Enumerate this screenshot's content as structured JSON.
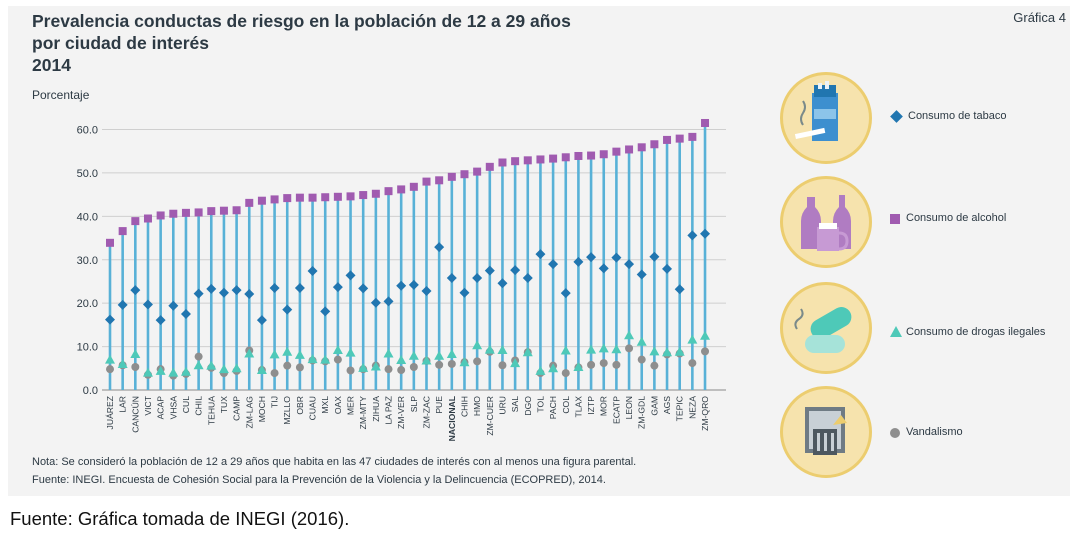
{
  "header": {
    "title_line1": "Prevalencia conductas de riesgo en la población de 12 a 29 años",
    "title_line2": "por ciudad de interés",
    "title_line3": "2014",
    "graph_number": "Gráfica 4"
  },
  "notes": {
    "note": "Nota: Se consideró la población de 12 a 29 años que habita en las 47 ciudades de interés con al menos una figura parental.",
    "source_inner": "Fuente: INEGI. Encuesta de Cohesión Social para la Prevención de la Violencia y la Delincuencia (ECOPRED), 2014."
  },
  "caption": "Fuente: Gráfica tomada de INEGI (2016).",
  "legend": [
    {
      "label": "Consumo de tabaco",
      "icon": "cigarette-pack-icon"
    },
    {
      "label": "Consumo de alcohol",
      "icon": "bottles-beer-icon"
    },
    {
      "label": "Consumo de drogas ilegales",
      "icon": "pills-icon"
    },
    {
      "label": "Vandalismo",
      "icon": "trash-can-icon"
    }
  ],
  "colors": {
    "tabaco": "#2176b0",
    "alcohol": "#a05bb0",
    "drogas": "#4ec9b8",
    "vandalismo": "#8e8e8e",
    "stem": "#58b1d7",
    "icon_bg": "#f6e3ad"
  },
  "chart_data": {
    "type": "scatter",
    "ylabel": "Porcentaje",
    "ylim": [
      0,
      60
    ],
    "yticks": [
      "0.0",
      "10.0",
      "20.0",
      "30.0",
      "40.0",
      "50.0",
      "60.0"
    ],
    "grid": true,
    "legend_position": "right",
    "categories": [
      "JUÁREZ",
      "LAR",
      "CANCÚN",
      "VICT",
      "ACAP",
      "VHSA",
      "CUL",
      "CHIL",
      "TEHUA",
      "TUX",
      "CAMP",
      "ZM-LAG",
      "MOCH",
      "TIJ",
      "MZLLO",
      "OBR",
      "CUAU",
      "MXL",
      "OAX",
      "MER",
      "ZM-MTY",
      "ZIHUA",
      "LA PAZ",
      "ZM-VER",
      "SLP",
      "ZM-ZAC",
      "PUE",
      "NACIONAL",
      "CHIH",
      "HMO",
      "ZM-CUER",
      "URU",
      "SAL",
      "DGO",
      "TOL",
      "PACH",
      "COL",
      "TLAX",
      "IZTP",
      "MOR",
      "ECATP",
      "LEON",
      "ZM-GDL",
      "GAM",
      "AGS",
      "TEPIC",
      "NEZA",
      "ZM-QRO"
    ],
    "series": [
      {
        "name": "Consumo de tabaco",
        "values": [
          16.2,
          19.6,
          23.0,
          19.7,
          16.1,
          19.4,
          17.5,
          22.2,
          23.3,
          22.4,
          23.0,
          22.1,
          16.1,
          23.5,
          18.5,
          23.5,
          27.4,
          18.1,
          23.7,
          26.4,
          23.4,
          20.1,
          20.4,
          24.0,
          24.2,
          22.8,
          32.9,
          25.8,
          22.4,
          25.8,
          27.5,
          24.6,
          27.6,
          25.8,
          31.3,
          29.0,
          22.3,
          29.5,
          30.6,
          28.0,
          30.5,
          29.0,
          26.6,
          30.7,
          27.9,
          23.2,
          35.6,
          36.0
        ]
      },
      {
        "name": "Consumo de alcohol",
        "values": [
          33.9,
          36.6,
          38.9,
          39.5,
          40.2,
          40.6,
          40.8,
          40.9,
          41.2,
          41.3,
          41.4,
          43.1,
          43.6,
          43.9,
          44.2,
          44.3,
          44.3,
          44.4,
          44.5,
          44.6,
          44.9,
          45.2,
          45.8,
          46.2,
          46.8,
          48.0,
          48.3,
          49.1,
          49.7,
          50.3,
          51.4,
          52.4,
          52.7,
          52.9,
          53.1,
          53.3,
          53.6,
          53.9,
          54.0,
          54.3,
          54.9,
          55.4,
          55.9,
          56.6,
          57.6,
          57.9,
          58.3,
          61.5
        ]
      },
      {
        "name": "Consumo de drogas ilegales",
        "values": [
          7.0,
          6.0,
          8.3,
          4.0,
          4.4,
          4.0,
          4.2,
          5.7,
          5.6,
          4.8,
          5.0,
          8.4,
          4.6,
          8.2,
          8.8,
          8.1,
          7.1,
          7.0,
          9.2,
          8.6,
          5.1,
          5.4,
          8.4,
          6.9,
          7.9,
          6.8,
          7.9,
          8.3,
          6.4,
          10.3,
          9.3,
          9.2,
          6.2,
          8.7,
          4.4,
          5.0,
          9.1,
          5.3,
          9.3,
          9.6,
          9.4,
          12.6,
          11.1,
          8.9,
          8.7,
          8.8,
          11.6,
          12.5
        ]
      },
      {
        "name": "Vandalismo",
        "values": [
          4.8,
          5.7,
          5.3,
          3.5,
          4.8,
          3.3,
          3.7,
          7.7,
          5.1,
          3.9,
          4.4,
          9.1,
          4.6,
          3.9,
          5.6,
          5.2,
          6.8,
          6.6,
          7.0,
          4.5,
          4.8,
          5.6,
          4.8,
          4.6,
          5.3,
          6.7,
          5.8,
          6.0,
          6.4,
          6.6,
          8.8,
          5.7,
          6.8,
          8.7,
          3.9,
          5.6,
          3.9,
          5.2,
          5.8,
          6.2,
          5.8,
          9.6,
          7.0,
          5.6,
          8.2,
          8.4,
          6.2,
          8.9
        ]
      }
    ]
  }
}
